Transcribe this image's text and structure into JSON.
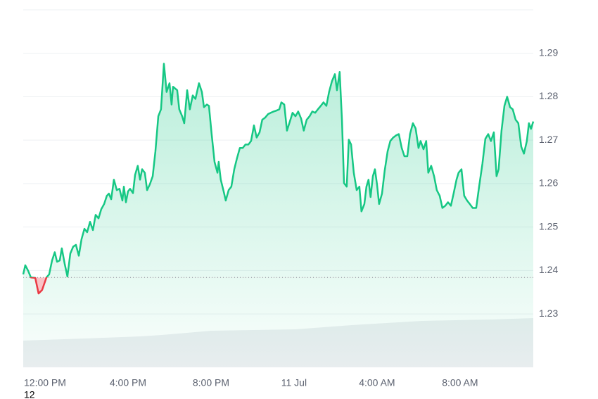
{
  "chart_data": {
    "type": "line",
    "x": [
      -1.05,
      -0.95,
      -0.81,
      -0.68,
      -0.47,
      -0.31,
      -0.14,
      0.07,
      0.2,
      0.34,
      0.47,
      0.58,
      0.71,
      0.81,
      0.95,
      1.08,
      1.22,
      1.36,
      1.49,
      1.63,
      1.76,
      1.9,
      2.03,
      2.17,
      2.31,
      2.44,
      2.58,
      2.71,
      2.85,
      2.98,
      3.08,
      3.19,
      3.32,
      3.46,
      3.59,
      3.73,
      3.8,
      3.9,
      4.0,
      4.1,
      4.24,
      4.34,
      4.47,
      4.58,
      4.68,
      4.81,
      4.92,
      5.05,
      5.19,
      5.32,
      5.46,
      5.59,
      5.73,
      5.86,
      6.0,
      6.1,
      6.17,
      6.37,
      6.47,
      6.61,
      6.71,
      6.85,
      6.98,
      7.12,
      7.25,
      7.42,
      7.56,
      7.66,
      7.8,
      7.9,
      8.03,
      8.17,
      8.31,
      8.37,
      8.47,
      8.61,
      8.71,
      8.85,
      8.98,
      9.12,
      9.25,
      9.39,
      9.53,
      9.66,
      9.8,
      9.93,
      10.07,
      10.2,
      10.34,
      10.47,
      10.61,
      10.75,
      10.88,
      11.02,
      11.15,
      11.29,
      11.39,
      11.53,
      11.66,
      11.8,
      11.93,
      12.07,
      12.2,
      12.34,
      12.47,
      12.61,
      12.75,
      12.88,
      13.02,
      13.15,
      13.29,
      13.42,
      13.56,
      13.69,
      13.83,
      13.97,
      14.07,
      14.2,
      14.31,
      14.41,
      14.54,
      14.64,
      14.75,
      14.88,
      15.02,
      15.15,
      15.25,
      15.39,
      15.49,
      15.59,
      15.69,
      15.8,
      15.9,
      16.0,
      16.1,
      16.24,
      16.37,
      16.51,
      16.64,
      16.78,
      16.92,
      17.05,
      17.19,
      17.32,
      17.46,
      17.59,
      17.73,
      17.86,
      18.0,
      18.1,
      18.24,
      18.37,
      18.47,
      18.61,
      18.75,
      18.88,
      19.02,
      19.15,
      19.29,
      19.42,
      19.56,
      19.69,
      19.83,
      19.93,
      20.07,
      20.2,
      20.34,
      20.47,
      20.61,
      20.78,
      20.92,
      21.08,
      21.22,
      21.36,
      21.49,
      21.63,
      21.76,
      21.86,
      22.0,
      22.14,
      22.27,
      22.41,
      22.54,
      22.68,
      22.81,
      22.95,
      23.08,
      23.22,
      23.32,
      23.42,
      23.53
    ],
    "values": [
      1.2391,
      1.2412,
      1.2399,
      1.2384,
      1.2383,
      1.2347,
      1.2355,
      1.2384,
      1.2391,
      1.2423,
      1.2442,
      1.242,
      1.2423,
      1.2451,
      1.2415,
      1.2386,
      1.2439,
      1.2455,
      1.2459,
      1.2434,
      1.2472,
      1.2496,
      1.2488,
      1.2512,
      1.2493,
      1.2528,
      1.252,
      1.2541,
      1.2553,
      1.2572,
      1.2577,
      1.2564,
      1.2609,
      1.2585,
      1.2588,
      1.2561,
      1.2593,
      1.2557,
      1.2582,
      1.2588,
      1.2578,
      1.262,
      1.2641,
      1.2609,
      1.2633,
      1.2625,
      1.2585,
      1.2598,
      1.2617,
      1.2674,
      1.2755,
      1.2771,
      1.2876,
      1.2811,
      1.2831,
      1.2782,
      1.2823,
      1.2815,
      1.2771,
      1.2755,
      1.2739,
      1.2815,
      1.2771,
      1.2803,
      1.2795,
      1.2831,
      1.2811,
      1.2776,
      1.2782,
      1.2779,
      1.2714,
      1.265,
      1.2625,
      1.265,
      1.2609,
      1.2582,
      1.2561,
      1.2585,
      1.2593,
      1.2633,
      1.2658,
      1.2682,
      1.2682,
      1.269,
      1.269,
      1.2698,
      1.2734,
      1.2706,
      1.2718,
      1.2747,
      1.2752,
      1.276,
      1.2763,
      1.2766,
      1.2768,
      1.2771,
      1.2787,
      1.2782,
      1.2722,
      1.2743,
      1.2763,
      1.2755,
      1.2766,
      1.275,
      1.2722,
      1.2747,
      1.2755,
      1.2766,
      1.2763,
      1.2771,
      1.2779,
      1.2787,
      1.2779,
      1.2811,
      1.2836,
      1.2852,
      1.2815,
      1.2857,
      1.2747,
      1.2601,
      1.2593,
      1.2701,
      1.269,
      1.2625,
      1.2585,
      1.2593,
      1.2536,
      1.2553,
      1.2593,
      1.2609,
      1.2569,
      1.2617,
      1.2633,
      1.2598,
      1.2553,
      1.2577,
      1.263,
      1.2674,
      1.2698,
      1.2706,
      1.2711,
      1.2714,
      1.2682,
      1.2663,
      1.2663,
      1.2714,
      1.2739,
      1.2727,
      1.2682,
      1.2698,
      1.2679,
      1.2698,
      1.2625,
      1.2641,
      1.2617,
      1.2585,
      1.2572,
      1.2544,
      1.2549,
      1.2557,
      1.2549,
      1.2577,
      1.2609,
      1.2625,
      1.2633,
      1.2572,
      1.2561,
      1.2553,
      1.2544,
      1.2544,
      1.2593,
      1.2646,
      1.2703,
      1.2714,
      1.2698,
      1.2718,
      1.2617,
      1.2633,
      1.2722,
      1.2779,
      1.28,
      1.2776,
      1.2771,
      1.2747,
      1.2739,
      1.2685,
      1.2669,
      1.2698,
      1.2739,
      1.2726,
      1.2743
    ],
    "baseline": 1.2384,
    "color": "#16c784",
    "down_color": "#ea3943",
    "xlim": [
      -1.05,
      23.53
    ],
    "xticks": [
      {
        "value": 0,
        "label": "12:00 PM"
      },
      {
        "value": 4,
        "label": "4:00 PM"
      },
      {
        "value": 8,
        "label": "8:00 PM"
      },
      {
        "value": 12,
        "label": "11 Jul"
      },
      {
        "value": 16,
        "label": "4:00 AM"
      },
      {
        "value": 20,
        "label": "8:00 AM"
      }
    ],
    "ylim": [
      1.2177,
      1.3
    ],
    "yticks": [
      1.23,
      1.24,
      1.25,
      1.26,
      1.27,
      1.28,
      1.29
    ],
    "grid": true,
    "footnote": "12"
  }
}
